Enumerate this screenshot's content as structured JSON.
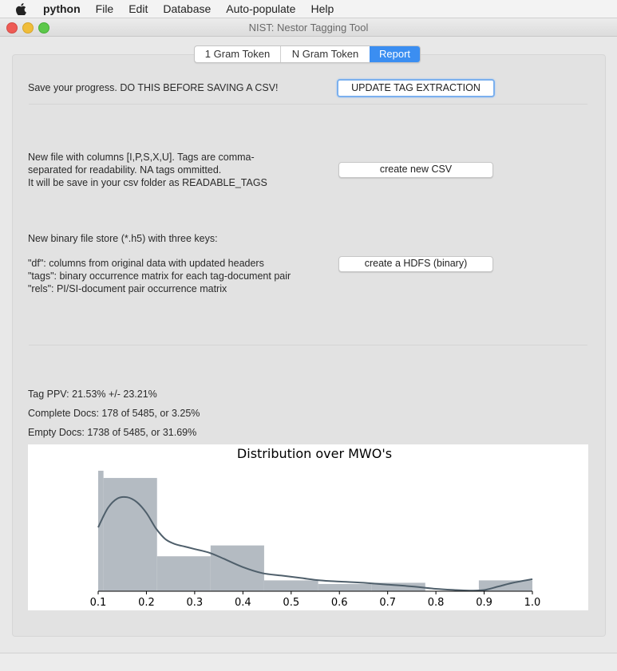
{
  "menubar": {
    "app_name": "python",
    "items": [
      "File",
      "Edit",
      "Database",
      "Auto-populate",
      "Help"
    ]
  },
  "window": {
    "title": "NIST: Nestor Tagging Tool"
  },
  "tabs": [
    {
      "label": "1 Gram Token",
      "active": false
    },
    {
      "label": "N Gram Token",
      "active": false
    },
    {
      "label": "Report",
      "active": true
    }
  ],
  "save_section": {
    "description": "Save your progress. DO THIS BEFORE SAVING A CSV!",
    "button_label": "UPDATE TAG EXTRACTION"
  },
  "csv_section": {
    "description": "New file with columns [I,P,S,X,U]. Tags are comma-\nseparated for readability. NA tags ommitted.\n It will be save in your csv folder as READABLE_TAGS",
    "button_label": "create new CSV"
  },
  "hdf_section": {
    "heading": "New binary file store (*.h5) with three keys:",
    "keys_description": " \"df\": columns from original data with updated headers\n \"tags\": binary occurrence matrix for each tag-document pair\n \"rels\": PI/SI-document pair occurrence matrix",
    "button_label": "create a HDFS (binary)"
  },
  "stats": {
    "tag_ppv": "Tag PPV: 21.53% +/- 23.21%",
    "complete_docs": "Complete Docs: 178 of 5485, or 3.25%",
    "empty_docs": "Empty Docs: 1738 of 5485, or 31.69%"
  },
  "chart_data": {
    "type": "bar",
    "title": "Distribution over MWO's",
    "xlabel": "",
    "ylabel": "",
    "xlim": [
      0.1,
      1.0
    ],
    "ylim": [
      0,
      1
    ],
    "x_ticks": [
      0.1,
      0.2,
      0.3,
      0.4,
      0.5,
      0.6,
      0.7,
      0.8,
      0.9,
      1.0
    ],
    "x_tick_labels": [
      "0.1",
      "0.2",
      "0.3",
      "0.4",
      "0.5",
      "0.6",
      "0.7",
      "0.8",
      "0.9",
      "1.0"
    ],
    "bins": [
      {
        "start": 0.1,
        "end": 0.111,
        "value": 1.0
      },
      {
        "start": 0.111,
        "end": 0.222,
        "value": 0.94
      },
      {
        "start": 0.222,
        "end": 0.333,
        "value": 0.29
      },
      {
        "start": 0.333,
        "end": 0.444,
        "value": 0.38
      },
      {
        "start": 0.444,
        "end": 0.556,
        "value": 0.09
      },
      {
        "start": 0.556,
        "end": 0.667,
        "value": 0.06
      },
      {
        "start": 0.667,
        "end": 0.778,
        "value": 0.07
      },
      {
        "start": 0.778,
        "end": 0.889,
        "value": 0.0
      },
      {
        "start": 0.889,
        "end": 1.0,
        "value": 0.09
      }
    ],
    "kde": {
      "x": [
        0.1,
        0.12,
        0.14,
        0.16,
        0.18,
        0.2,
        0.22,
        0.24,
        0.26,
        0.28,
        0.3,
        0.33,
        0.36,
        0.4,
        0.44,
        0.48,
        0.52,
        0.56,
        0.6,
        0.65,
        0.7,
        0.75,
        0.8,
        0.84,
        0.87,
        0.9,
        0.93,
        0.96,
        1.0
      ],
      "y": [
        0.53,
        0.69,
        0.77,
        0.78,
        0.74,
        0.65,
        0.52,
        0.43,
        0.39,
        0.37,
        0.35,
        0.32,
        0.27,
        0.2,
        0.15,
        0.13,
        0.11,
        0.09,
        0.08,
        0.07,
        0.055,
        0.04,
        0.02,
        0.01,
        0.005,
        0.01,
        0.04,
        0.07,
        0.1
      ]
    },
    "colors": {
      "bars": "#b4bbc2",
      "line": "#4f5f6b"
    },
    "grid": false,
    "legend": "none"
  }
}
